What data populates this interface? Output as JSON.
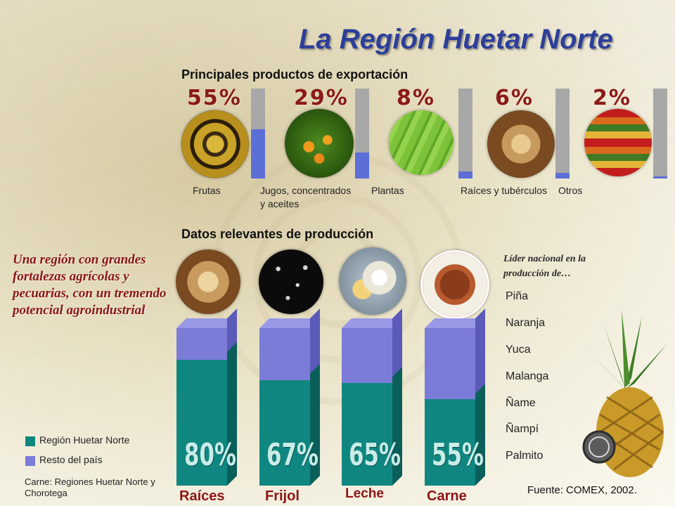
{
  "title": "La Región Huetar Norte",
  "exports": {
    "heading": "Principales productos de exportación",
    "items": [
      {
        "pct_label": "55%",
        "value": 55,
        "label": "Frutas",
        "image": "bananas-photo"
      },
      {
        "pct_label": "29%",
        "value": 29,
        "label": "Jugos, concentrados\ny aceites",
        "image": "oranges-photo"
      },
      {
        "pct_label": "8%",
        "value": 8,
        "label": "Plantas",
        "image": "plant-leaves-photo"
      },
      {
        "pct_label": "6%",
        "value": 6,
        "label": "Raíces y tubérculos",
        "image": "roots-photo"
      },
      {
        "pct_label": "2%",
        "value": 2,
        "label": "Otros",
        "image": "produce-stand-photo"
      }
    ]
  },
  "production": {
    "heading": "Datos relevantes de producción",
    "colors": {
      "region": "#0f8780",
      "rest": "#7b7bd8",
      "bar_track": "#a8a8a8",
      "bar_fill": "#5c6fd6"
    },
    "columns": [
      {
        "pct_label": "80%",
        "value": 80,
        "label": "Raíces",
        "image": "roots-photo"
      },
      {
        "pct_label": "67%",
        "value": 67,
        "label": "Frijol",
        "image": "black-beans-photo"
      },
      {
        "pct_label": "65%",
        "value": 65,
        "label": "Leche",
        "image": "dairy-photo"
      },
      {
        "pct_label": "55%",
        "value": 55,
        "label": "Carne",
        "image": "meat-plate-photo"
      }
    ]
  },
  "side_text": "Una región con grandes fortalezas agrícolas y pecuarias, con un tremendo potencial agroindustrial",
  "legend": {
    "region": "Región Huetar Norte",
    "rest": "Resto del país"
  },
  "note": "Carne: Regiones Huetar Norte y Chorotega",
  "leader": {
    "heading": "Líder nacional en la producción de…",
    "items": [
      "Piña",
      "Naranja",
      "Yuca",
      "Malanga",
      "Ñame",
      "Ñampí",
      "Palmito"
    ]
  },
  "source": "Fuente: COMEX, 2002."
}
